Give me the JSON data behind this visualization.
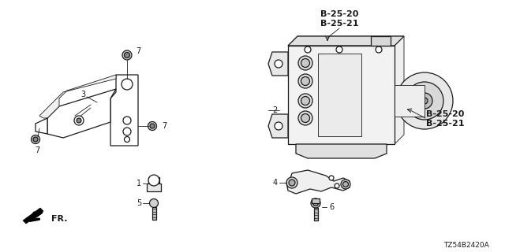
{
  "diagram_code": "TZ54B2420A",
  "background_color": "#ffffff",
  "line_color": "#1a1a1a",
  "figsize": [
    6.4,
    3.2
  ],
  "dpi": 100,
  "labels": {
    "b2520_top": "B-25-20",
    "b2521_top": "B-25-21",
    "b2520_right": "B-25-20",
    "b2521_right": "B-25-21",
    "fr": "FR.",
    "n1": "1",
    "n2": "2",
    "n3": "3",
    "n4": "4",
    "n5": "5",
    "n6": "6",
    "n7a": "7",
    "n7b": "7",
    "n7c": "7"
  }
}
